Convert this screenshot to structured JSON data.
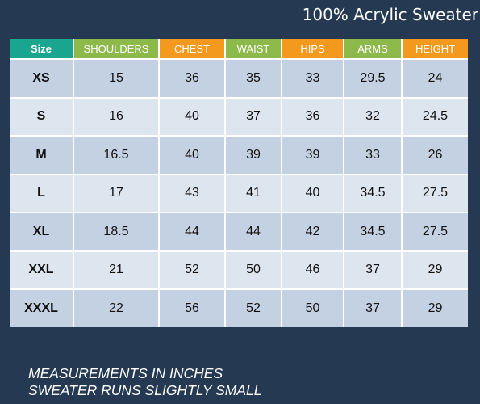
{
  "title": "100% Acrylic Sweater",
  "table": {
    "headers": [
      {
        "label": "Size",
        "color": "#1aa58f"
      },
      {
        "label": "SHOULDERS",
        "color": "#8db94a"
      },
      {
        "label": "CHEST",
        "color": "#f39a1e"
      },
      {
        "label": "WAIST",
        "color": "#8db94a"
      },
      {
        "label": "HIPS",
        "color": "#f39a1e"
      },
      {
        "label": "ARMS",
        "color": "#8db94a"
      },
      {
        "label": "HEIGHT",
        "color": "#f39a1e"
      }
    ],
    "rows": [
      [
        "XS",
        "15",
        "36",
        "35",
        "33",
        "29.5",
        "24"
      ],
      [
        "S",
        "16",
        "40",
        "37",
        "36",
        "32",
        "24.5"
      ],
      [
        "M",
        "16.5",
        "40",
        "39",
        "39",
        "33",
        "26"
      ],
      [
        "L",
        "17",
        "43",
        "41",
        "40",
        "34.5",
        "27.5"
      ],
      [
        "XL",
        "18.5",
        "44",
        "44",
        "42",
        "34.5",
        "27.5"
      ],
      [
        "XXL",
        "21",
        "52",
        "50",
        "46",
        "37",
        "29"
      ],
      [
        "XXXL",
        "22",
        "56",
        "52",
        "50",
        "37",
        "29"
      ]
    ]
  },
  "notes": [
    "MEASUREMENTS IN INCHES",
    "SWEATER RUNS SLIGHTLY SMALL"
  ],
  "colors": {
    "background": "#253a52",
    "row_band_a": "#c4d1e2",
    "row_band_b": "#dde5ef"
  }
}
